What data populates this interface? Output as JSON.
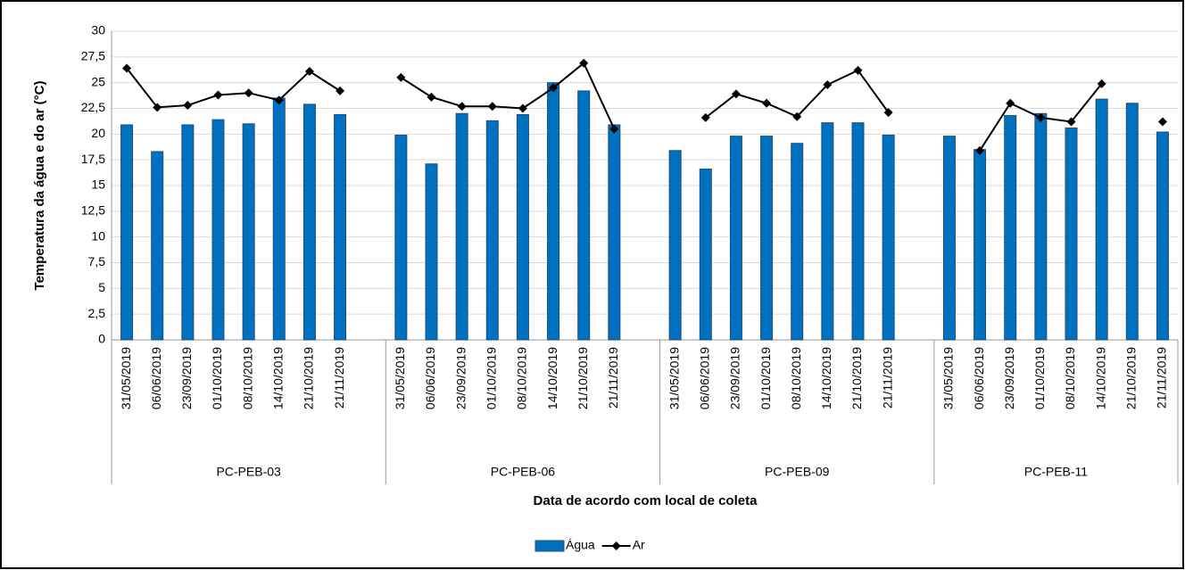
{
  "chart_data": {
    "type": "bar_line",
    "y_label": "Temperatura da água e do ar (°C)",
    "x_label": "Data de acordo com local de coleta",
    "groups": [
      {
        "name": "PC-PEB-03",
        "categories": [
          "31/05/2019",
          "06/06/2019",
          "23/09/2019",
          "01/10/2019",
          "08/10/2019",
          "14/10/2019",
          "21/10/2019",
          "21/11/2019",
          null
        ]
      },
      {
        "name": "PC-PEB-06",
        "categories": [
          "31/05/2019",
          "06/06/2019",
          "23/09/2019",
          "01/10/2019",
          "08/10/2019",
          "14/10/2019",
          "21/10/2019",
          "21/11/2019",
          null
        ]
      },
      {
        "name": "PC-PEB-09",
        "categories": [
          "31/05/2019",
          "06/06/2019",
          "23/09/2019",
          "01/10/2019",
          "08/10/2019",
          "14/10/2019",
          "21/10/2019",
          "21/11/2019",
          null
        ]
      },
      {
        "name": "PC-PEB-11",
        "categories": [
          "31/05/2019",
          "06/06/2019",
          "23/09/2019",
          "01/10/2019",
          "08/10/2019",
          "14/10/2019",
          "21/10/2019",
          "21/11/2019"
        ]
      }
    ],
    "series": [
      {
        "name": "Água",
        "kind": "bar",
        "color": "#0070c0",
        "values": [
          20.9,
          18.3,
          20.9,
          21.4,
          21.0,
          23.5,
          22.9,
          21.9,
          null,
          19.9,
          17.1,
          22.0,
          21.3,
          21.9,
          25.0,
          24.2,
          20.9,
          null,
          18.4,
          16.6,
          19.8,
          19.8,
          19.1,
          21.1,
          21.1,
          19.9,
          null,
          19.8,
          18.5,
          21.8,
          22.0,
          20.6,
          23.4,
          23.0,
          20.2
        ]
      },
      {
        "name": "Ar",
        "kind": "line",
        "color": "#000000",
        "values": [
          26.4,
          22.6,
          22.8,
          23.8,
          24.0,
          23.3,
          26.1,
          24.2,
          null,
          25.5,
          23.6,
          22.7,
          22.7,
          22.5,
          24.5,
          26.9,
          20.5,
          null,
          null,
          21.6,
          23.9,
          23.0,
          21.7,
          24.8,
          26.2,
          22.1,
          null,
          null,
          18.4,
          23.0,
          21.6,
          21.2,
          24.9,
          null,
          21.2
        ]
      }
    ],
    "ylim": [
      0,
      30
    ],
    "yticks": [
      0,
      {
        "value": 2.5,
        "label": "2,5"
      },
      5,
      {
        "value": 7.5,
        "label": "7,5"
      },
      10,
      {
        "value": 12.5,
        "label": "12,5"
      },
      15,
      {
        "value": 17.5,
        "label": "17,5"
      },
      20,
      {
        "value": 22.5,
        "label": "22,5"
      },
      25,
      {
        "value": 27.5,
        "label": "27,5"
      },
      30
    ],
    "grid": true,
    "legend": "bottom"
  }
}
